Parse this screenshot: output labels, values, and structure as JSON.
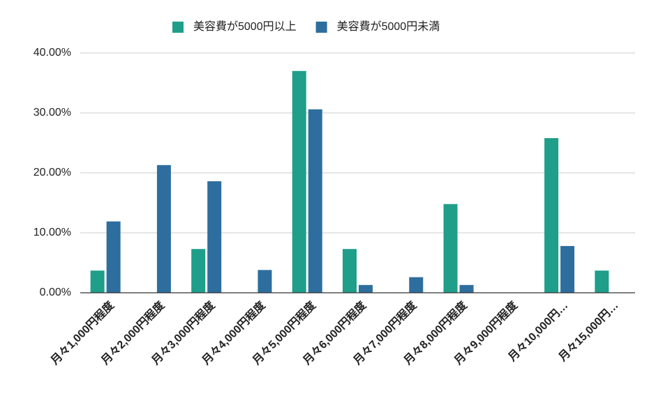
{
  "chart_data": {
    "type": "bar",
    "categories": [
      "月々1,000円程度",
      "月々2,000円程度",
      "月々3,000円程度",
      "月々4,000円程度",
      "月々5,000円程度",
      "月々6,000円程度",
      "月々7,000円程度",
      "月々8,000円程度",
      "月々9,000円程度",
      "月々10,000円…",
      "月々15,000円…"
    ],
    "series": [
      {
        "name": "美容費が5000円以上",
        "color": "#1f9e89",
        "values": [
          3.7,
          0,
          7.3,
          0,
          37.0,
          7.3,
          0,
          14.8,
          0,
          25.8,
          3.7
        ]
      },
      {
        "name": "美容費が5000円未満",
        "color": "#2e6e9e",
        "values": [
          11.9,
          21.3,
          18.6,
          3.8,
          30.6,
          1.3,
          2.6,
          1.3,
          0,
          7.8,
          0
        ]
      }
    ],
    "ylim": [
      0,
      40
    ],
    "yticks": [
      {
        "value": 0,
        "label": "0.00%"
      },
      {
        "value": 10,
        "label": "10.00%"
      },
      {
        "value": 20,
        "label": "20.00%"
      },
      {
        "value": 30,
        "label": "30.00%"
      },
      {
        "value": 40,
        "label": "40.00%"
      }
    ],
    "grid": true,
    "legend": "top"
  }
}
